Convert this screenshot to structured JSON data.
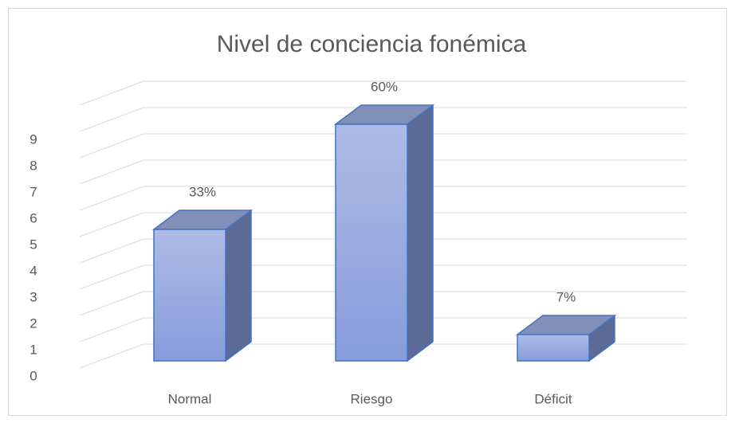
{
  "chart_data": {
    "type": "bar3d",
    "title": "Nivel de conciencia fonémica",
    "categories": [
      "Normal",
      "Riesgo",
      "Déficit"
    ],
    "values": [
      5,
      9,
      1
    ],
    "value_labels": [
      "33%",
      "60%",
      "7%"
    ],
    "color": "#8fa3dd",
    "ylim": [
      0,
      10
    ],
    "yticks": [
      0,
      1,
      2,
      3,
      4,
      5,
      6,
      7,
      8,
      9
    ],
    "grid": true
  }
}
